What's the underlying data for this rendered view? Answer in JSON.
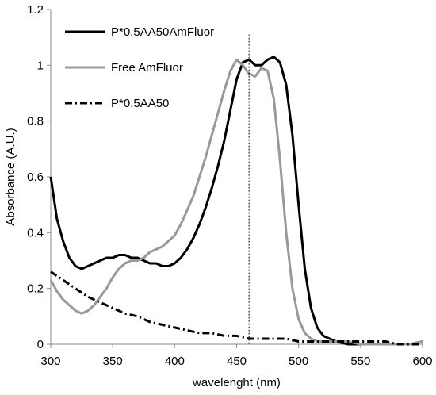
{
  "chart_data": {
    "type": "line",
    "title": "",
    "xlabel": "wavelenght (nm)",
    "ylabel": "Absorbance (A.U.)",
    "xlim": [
      300,
      600
    ],
    "ylim": [
      0,
      1.2
    ],
    "xticks": [
      "300",
      "350",
      "400",
      "450",
      "500",
      "550",
      "600"
    ],
    "yticks": [
      "0",
      "0.2",
      "0.4",
      "0.6",
      "0.8",
      "1",
      "1.2"
    ],
    "grid": false,
    "legend_position": "top-left",
    "reference_line": {
      "x": 460,
      "style": "dotted"
    },
    "series": [
      {
        "name": "P*0.5AA50AmFluor",
        "color": "#000000",
        "dash": "solid",
        "x": [
          300,
          305,
          310,
          315,
          320,
          325,
          330,
          335,
          340,
          345,
          350,
          355,
          360,
          365,
          370,
          375,
          380,
          385,
          390,
          395,
          400,
          405,
          410,
          415,
          420,
          425,
          430,
          435,
          440,
          445,
          450,
          455,
          460,
          465,
          470,
          475,
          480,
          485,
          490,
          495,
          500,
          505,
          510,
          515,
          520,
          525,
          530,
          540,
          550,
          560,
          570,
          580,
          590,
          600
        ],
        "y": [
          0.6,
          0.45,
          0.37,
          0.31,
          0.28,
          0.27,
          0.28,
          0.29,
          0.3,
          0.31,
          0.31,
          0.32,
          0.32,
          0.31,
          0.31,
          0.3,
          0.29,
          0.29,
          0.28,
          0.28,
          0.29,
          0.31,
          0.34,
          0.38,
          0.43,
          0.49,
          0.56,
          0.64,
          0.73,
          0.84,
          0.95,
          1.01,
          1.02,
          1.0,
          1.0,
          1.02,
          1.03,
          1.01,
          0.93,
          0.75,
          0.5,
          0.27,
          0.13,
          0.06,
          0.03,
          0.02,
          0.01,
          0.0,
          0.0,
          0.0,
          0.0,
          0.0,
          0.0,
          0.01
        ]
      },
      {
        "name": "Free AmFluor",
        "color": "#999999",
        "dash": "solid",
        "x": [
          300,
          305,
          310,
          315,
          320,
          325,
          330,
          335,
          340,
          345,
          350,
          355,
          360,
          365,
          370,
          375,
          380,
          385,
          390,
          395,
          400,
          405,
          410,
          415,
          420,
          425,
          430,
          435,
          440,
          445,
          450,
          455,
          460,
          465,
          470,
          475,
          480,
          485,
          490,
          495,
          500,
          505,
          510,
          515,
          520,
          530,
          540,
          550,
          560,
          570,
          580,
          590,
          600
        ],
        "y": [
          0.23,
          0.19,
          0.16,
          0.14,
          0.12,
          0.11,
          0.12,
          0.14,
          0.17,
          0.2,
          0.24,
          0.27,
          0.29,
          0.3,
          0.3,
          0.31,
          0.33,
          0.34,
          0.35,
          0.37,
          0.39,
          0.43,
          0.48,
          0.53,
          0.6,
          0.67,
          0.75,
          0.83,
          0.91,
          0.98,
          1.02,
          1.0,
          0.97,
          0.96,
          0.99,
          0.98,
          0.88,
          0.66,
          0.4,
          0.2,
          0.09,
          0.04,
          0.02,
          0.01,
          0.01,
          0.01,
          0.01,
          0.0,
          0.0,
          0.0,
          0.0,
          0.0,
          0.01
        ]
      },
      {
        "name": "P*0.5AA50",
        "color": "#000000",
        "dash": "dash-dot",
        "x": [
          300,
          310,
          320,
          330,
          340,
          350,
          360,
          370,
          380,
          390,
          400,
          410,
          420,
          430,
          440,
          450,
          460,
          470,
          480,
          490,
          500,
          510,
          520,
          530,
          540,
          550,
          560,
          570,
          580,
          590,
          600
        ],
        "y": [
          0.26,
          0.23,
          0.2,
          0.17,
          0.15,
          0.13,
          0.11,
          0.1,
          0.08,
          0.07,
          0.06,
          0.05,
          0.04,
          0.04,
          0.03,
          0.03,
          0.02,
          0.02,
          0.02,
          0.02,
          0.01,
          0.01,
          0.01,
          0.01,
          0.01,
          0.01,
          0.01,
          0.01,
          0.0,
          0.0,
          0.0
        ]
      }
    ]
  }
}
